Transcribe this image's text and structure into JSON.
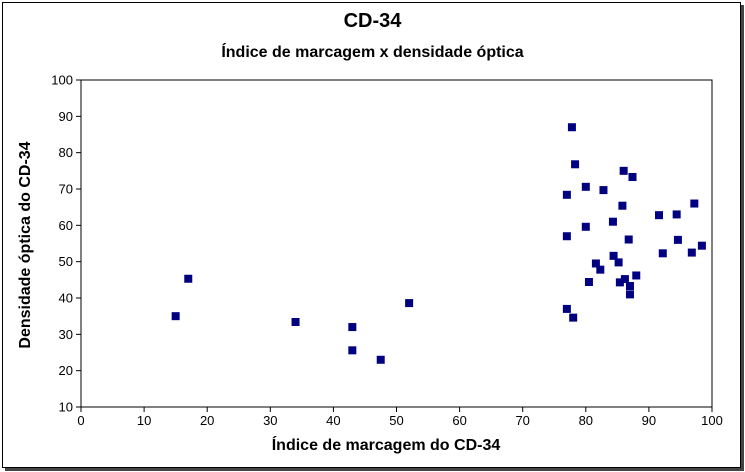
{
  "chart_data": {
    "type": "scatter",
    "title": "CD-34",
    "subtitle": "Índice de marcagem  x  densidade óptica",
    "xlabel": "Índice de marcagem do CD-34",
    "ylabel": "Densidade óptica do CD-34",
    "xlim": [
      0,
      100
    ],
    "ylim": [
      10,
      100
    ],
    "xticks": [
      0,
      10,
      20,
      30,
      40,
      50,
      60,
      70,
      80,
      90,
      100
    ],
    "yticks": [
      10,
      20,
      30,
      40,
      50,
      60,
      70,
      80,
      90,
      100
    ],
    "grid": false,
    "marker": "square",
    "marker_color": "#000080",
    "points": [
      {
        "x": 15,
        "y": 35
      },
      {
        "x": 17,
        "y": 45.3
      },
      {
        "x": 34,
        "y": 33.4
      },
      {
        "x": 43,
        "y": 32
      },
      {
        "x": 43,
        "y": 25.6
      },
      {
        "x": 47.5,
        "y": 23
      },
      {
        "x": 52,
        "y": 38.6
      },
      {
        "x": 77,
        "y": 37
      },
      {
        "x": 77,
        "y": 68.4
      },
      {
        "x": 77,
        "y": 57
      },
      {
        "x": 77.8,
        "y": 87
      },
      {
        "x": 78,
        "y": 34.6
      },
      {
        "x": 78.3,
        "y": 76.8
      },
      {
        "x": 80,
        "y": 70.6
      },
      {
        "x": 80,
        "y": 59.6
      },
      {
        "x": 80.5,
        "y": 44.4
      },
      {
        "x": 81.6,
        "y": 49.5
      },
      {
        "x": 82.3,
        "y": 47.8
      },
      {
        "x": 82.8,
        "y": 69.7
      },
      {
        "x": 84.3,
        "y": 61
      },
      {
        "x": 84.4,
        "y": 51.6
      },
      {
        "x": 85.2,
        "y": 49.8
      },
      {
        "x": 85.4,
        "y": 44.3
      },
      {
        "x": 85.8,
        "y": 65.4
      },
      {
        "x": 86,
        "y": 75
      },
      {
        "x": 86.2,
        "y": 45.2
      },
      {
        "x": 86.8,
        "y": 56.1
      },
      {
        "x": 87,
        "y": 43.3
      },
      {
        "x": 87,
        "y": 41
      },
      {
        "x": 87.4,
        "y": 73.3
      },
      {
        "x": 88,
        "y": 46.2
      },
      {
        "x": 91.6,
        "y": 62.8
      },
      {
        "x": 92.2,
        "y": 52.3
      },
      {
        "x": 94.4,
        "y": 63
      },
      {
        "x": 94.6,
        "y": 56
      },
      {
        "x": 96.8,
        "y": 52.5
      },
      {
        "x": 97.2,
        "y": 66
      },
      {
        "x": 98.4,
        "y": 54.4
      }
    ]
  }
}
